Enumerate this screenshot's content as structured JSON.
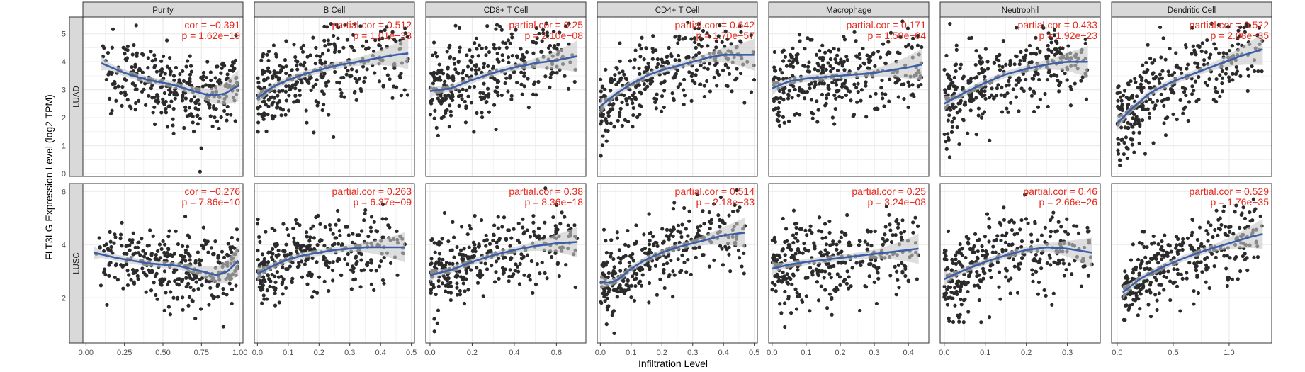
{
  "chart_data": {
    "type": "scatter",
    "xlabel": "Infiltration Level",
    "ylabel": "FLT3LG Expression Level (log2 TPM)",
    "grid": true,
    "colors": {
      "point": "#2b2b2b",
      "smooth_line": "#3a5fa8",
      "ci_band": "#c8c8c8",
      "annotation": "#e8291c",
      "strip_bg": "#d9d9d9",
      "grid": "#ebebeb"
    },
    "columns": [
      {
        "label": "Purity",
        "xlim": [
          -0.02,
          1.02
        ],
        "xticks": [
          0.0,
          0.25,
          0.5,
          0.75,
          1.0
        ],
        "xtick_labels": [
          "0.00",
          "0.25",
          "0.50",
          "0.75",
          "1.00"
        ]
      },
      {
        "label": "B Cell",
        "xlim": [
          -0.01,
          0.51
        ],
        "xticks": [
          0.0,
          0.1,
          0.2,
          0.3,
          0.4,
          0.5
        ],
        "xtick_labels": [
          "0.0",
          "0.1",
          "0.2",
          "0.3",
          "0.4",
          "0.5"
        ]
      },
      {
        "label": "CD8+ T Cell",
        "xlim": [
          -0.02,
          0.74
        ],
        "xticks": [
          0.0,
          0.2,
          0.4,
          0.6
        ],
        "xtick_labels": [
          "0.0",
          "0.2",
          "0.4",
          "0.6"
        ]
      },
      {
        "label": "CD4+ T Cell",
        "xlim": [
          -0.01,
          0.51
        ],
        "xticks": [
          0.0,
          0.1,
          0.2,
          0.3,
          0.4,
          0.5
        ],
        "xtick_labels": [
          "0.0",
          "0.1",
          "0.2",
          "0.3",
          "0.4",
          "0.5"
        ]
      },
      {
        "label": "Macrophage",
        "xlim": [
          -0.01,
          0.46
        ],
        "xticks": [
          0.0,
          0.1,
          0.2,
          0.3,
          0.4
        ],
        "xtick_labels": [
          "0.0",
          "0.1",
          "0.2",
          "0.3",
          "0.4"
        ]
      },
      {
        "label": "Neutrophil",
        "xlim": [
          -0.01,
          0.38
        ],
        "xticks": [
          0.0,
          0.1,
          0.2,
          0.3
        ],
        "xtick_labels": [
          "0.0",
          "0.1",
          "0.2",
          "0.3"
        ]
      },
      {
        "label": "Dendritic Cell",
        "xlim": [
          -0.05,
          1.38
        ],
        "xticks": [
          0.0,
          0.5,
          1.0
        ],
        "xtick_labels": [
          "0.0",
          "0.5",
          "1.0"
        ]
      }
    ],
    "rows": [
      {
        "label": "LUAD",
        "ylim": [
          -0.1,
          5.6
        ],
        "yticks": [
          0,
          1,
          2,
          3,
          4,
          5
        ],
        "ytick_labels": [
          "0",
          "1",
          "2",
          "3",
          "4",
          "5"
        ]
      },
      {
        "label": "LUSC",
        "ylim": [
          0.3,
          6.3
        ],
        "yticks": [
          2,
          4,
          6
        ],
        "ytick_labels": [
          "2",
          "4",
          "6"
        ]
      }
    ],
    "panels": [
      {
        "row": "LUAD",
        "column": "Purity",
        "cor_text": "cor = −0.391",
        "p_text": "p = 1.62e−19",
        "cor": -0.391,
        "x_range": [
          0.1,
          0.99
        ],
        "smooth_x": [
          0.1,
          0.25,
          0.4,
          0.55,
          0.7,
          0.8,
          0.9,
          0.99
        ],
        "smooth_y": [
          3.95,
          3.6,
          3.35,
          3.2,
          2.95,
          2.8,
          2.85,
          3.15
        ]
      },
      {
        "row": "LUAD",
        "column": "B Cell",
        "cor_text": "partial.cor = 0.512",
        "p_text": "p = 1.01e−33",
        "cor": 0.512,
        "x_range": [
          0.0,
          0.49
        ],
        "smooth_x": [
          0.0,
          0.05,
          0.1,
          0.15,
          0.2,
          0.25,
          0.3,
          0.35,
          0.4,
          0.45,
          0.49
        ],
        "smooth_y": [
          2.7,
          3.1,
          3.35,
          3.55,
          3.7,
          3.85,
          3.95,
          4.05,
          4.15,
          4.25,
          4.3
        ]
      },
      {
        "row": "LUAD",
        "column": "CD8+ T Cell",
        "cor_text": "partial.cor = 0.25",
        "p_text": "p = 2.10e−08",
        "cor": 0.25,
        "x_range": [
          0.0,
          0.7
        ],
        "smooth_x": [
          0.0,
          0.1,
          0.2,
          0.3,
          0.4,
          0.5,
          0.6,
          0.7
        ],
        "smooth_y": [
          2.95,
          3.05,
          3.35,
          3.6,
          3.8,
          3.95,
          4.05,
          4.2
        ]
      },
      {
        "row": "LUAD",
        "column": "CD4+ T Cell",
        "cor_text": "partial.cor = 0.642",
        "p_text": "p = 1.70e−57",
        "cor": 0.642,
        "x_range": [
          0.0,
          0.5
        ],
        "smooth_x": [
          0.0,
          0.05,
          0.1,
          0.15,
          0.2,
          0.25,
          0.3,
          0.35,
          0.4,
          0.45,
          0.49
        ],
        "smooth_y": [
          2.4,
          2.85,
          3.2,
          3.5,
          3.7,
          3.85,
          4.0,
          4.15,
          4.25,
          4.25,
          4.25
        ]
      },
      {
        "row": "LUAD",
        "column": "Macrophage",
        "cor_text": "partial.cor = 0.171",
        "p_text": "p = 1.59e−04",
        "cor": 0.171,
        "x_range": [
          0.0,
          0.44
        ],
        "smooth_x": [
          0.0,
          0.05,
          0.1,
          0.2,
          0.3,
          0.4,
          0.44
        ],
        "smooth_y": [
          3.05,
          3.3,
          3.4,
          3.5,
          3.6,
          3.8,
          3.9
        ]
      },
      {
        "row": "LUAD",
        "column": "Neutrophil",
        "cor_text": "partial.cor = 0.433",
        "p_text": "p = 1.92e−23",
        "cor": 0.433,
        "x_range": [
          0.0,
          0.35
        ],
        "smooth_x": [
          0.0,
          0.05,
          0.1,
          0.15,
          0.2,
          0.25,
          0.3,
          0.35
        ],
        "smooth_y": [
          2.5,
          2.9,
          3.25,
          3.55,
          3.75,
          3.9,
          4.0,
          4.0
        ]
      },
      {
        "row": "LUAD",
        "column": "Dendritic Cell",
        "cor_text": "partial.cor = 0.522",
        "p_text": "p = 2.08e−35",
        "cor": 0.522,
        "x_range": [
          0.0,
          1.3
        ],
        "smooth_x": [
          0.0,
          0.15,
          0.3,
          0.5,
          0.7,
          0.9,
          1.1,
          1.3
        ],
        "smooth_y": [
          1.8,
          2.4,
          2.9,
          3.3,
          3.6,
          3.9,
          4.2,
          4.45
        ]
      },
      {
        "row": "LUSC",
        "column": "Purity",
        "cor_text": "cor = −0.276",
        "p_text": "p = 7.86e−10",
        "cor": -0.276,
        "x_range": [
          0.05,
          0.99
        ],
        "smooth_x": [
          0.05,
          0.2,
          0.4,
          0.6,
          0.75,
          0.85,
          0.92,
          0.99
        ],
        "smooth_y": [
          3.7,
          3.5,
          3.3,
          3.2,
          3.0,
          2.85,
          3.0,
          3.4
        ]
      },
      {
        "row": "LUSC",
        "column": "B Cell",
        "cor_text": "partial.cor = 0.263",
        "p_text": "p = 6.37e−09",
        "cor": 0.263,
        "x_range": [
          0.0,
          0.48
        ],
        "smooth_x": [
          0.0,
          0.05,
          0.1,
          0.15,
          0.2,
          0.25,
          0.3,
          0.35,
          0.4,
          0.45,
          0.48
        ],
        "smooth_y": [
          2.9,
          3.2,
          3.45,
          3.6,
          3.7,
          3.8,
          3.85,
          3.9,
          3.9,
          3.9,
          3.9
        ]
      },
      {
        "row": "LUSC",
        "column": "CD8+ T Cell",
        "cor_text": "partial.cor = 0.38",
        "p_text": "p = 8.36e−18",
        "cor": 0.38,
        "x_range": [
          0.0,
          0.7
        ],
        "smooth_x": [
          0.0,
          0.1,
          0.2,
          0.3,
          0.4,
          0.5,
          0.6,
          0.7
        ],
        "smooth_y": [
          2.85,
          3.05,
          3.35,
          3.6,
          3.8,
          3.95,
          4.05,
          4.1
        ]
      },
      {
        "row": "LUSC",
        "column": "CD4+ T Cell",
        "cor_text": "partial.cor = 0.514",
        "p_text": "p = 2.18e−33",
        "cor": 0.514,
        "x_range": [
          0.0,
          0.47
        ],
        "smooth_x": [
          0.0,
          0.03,
          0.06,
          0.1,
          0.15,
          0.2,
          0.25,
          0.3,
          0.35,
          0.4,
          0.47
        ],
        "smooth_y": [
          2.6,
          2.55,
          2.7,
          3.1,
          3.45,
          3.7,
          3.9,
          4.05,
          4.2,
          4.35,
          4.45
        ]
      },
      {
        "row": "LUSC",
        "column": "Macrophage",
        "cor_text": "partial.cor = 0.25",
        "p_text": "p = 3.24e−08",
        "cor": 0.25,
        "x_range": [
          0.0,
          0.43
        ],
        "smooth_x": [
          0.0,
          0.05,
          0.1,
          0.2,
          0.3,
          0.4,
          0.43
        ],
        "smooth_y": [
          3.1,
          3.25,
          3.35,
          3.5,
          3.65,
          3.8,
          3.85
        ]
      },
      {
        "row": "LUSC",
        "column": "Neutrophil",
        "cor_text": "partial.cor = 0.46",
        "p_text": "p = 2.66e−26",
        "cor": 0.46,
        "x_range": [
          0.0,
          0.36
        ],
        "smooth_x": [
          0.0,
          0.05,
          0.1,
          0.15,
          0.2,
          0.25,
          0.3,
          0.36
        ],
        "smooth_y": [
          2.7,
          3.05,
          3.35,
          3.6,
          3.8,
          3.9,
          3.85,
          3.7
        ]
      },
      {
        "row": "LUSC",
        "column": "Dendritic Cell",
        "cor_text": "partial.cor = 0.529",
        "p_text": "p = 1.76e−35",
        "cor": 0.529,
        "x_range": [
          0.05,
          1.3
        ],
        "smooth_x": [
          0.05,
          0.2,
          0.4,
          0.6,
          0.8,
          1.0,
          1.2,
          1.3
        ],
        "smooth_y": [
          2.2,
          2.7,
          3.15,
          3.5,
          3.8,
          4.05,
          4.3,
          4.4
        ]
      }
    ]
  }
}
